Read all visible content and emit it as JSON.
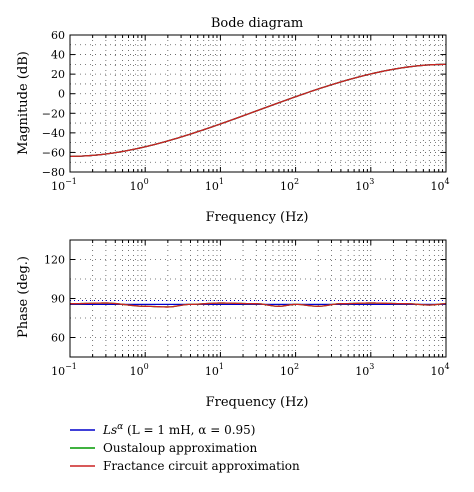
{
  "chart_data": [
    {
      "type": "line",
      "title": "Bode diagram",
      "xlabel": "Frequency (Hz)",
      "ylabel": "Magnitude (dB)",
      "xscale": "log",
      "xlim": [
        0.1,
        10000
      ],
      "ylim": [
        -80,
        60
      ],
      "xticks": [
        {
          "base": "10",
          "exp": "−1"
        },
        {
          "base": "10",
          "exp": "0"
        },
        {
          "base": "10",
          "exp": "1"
        },
        {
          "base": "10",
          "exp": "2"
        },
        {
          "base": "10",
          "exp": "3"
        },
        {
          "base": "10",
          "exp": "4"
        }
      ],
      "xtick_values": [
        0.1,
        1,
        10,
        100,
        1000,
        10000
      ],
      "yticks": [
        "60",
        "40",
        "20",
        "0",
        "−20",
        "−40",
        "−60",
        "−80"
      ],
      "ytick_values": [
        60,
        40,
        20,
        0,
        -20,
        -40,
        -60,
        -80
      ],
      "grid": true,
      "series": [
        {
          "x": [
            0.1,
            10000
          ],
          "y": [
            -64,
            30
          ],
          "color": "#0000cc"
        },
        {
          "x": [
            0.1,
            10000
          ],
          "y": [
            -64,
            30
          ],
          "color": "#009900"
        },
        {
          "x": [
            0.1,
            10000
          ],
          "y": [
            -64,
            30
          ],
          "color": "#cc2222"
        }
      ]
    },
    {
      "type": "line",
      "xlabel": "Frequency (Hz)",
      "ylabel": "Phase (deg.)",
      "xscale": "log",
      "xlim": [
        0.1,
        10000
      ],
      "ylim": [
        45,
        135
      ],
      "xticks": [
        {
          "base": "10",
          "exp": "−1"
        },
        {
          "base": "10",
          "exp": "0"
        },
        {
          "base": "10",
          "exp": "1"
        },
        {
          "base": "10",
          "exp": "2"
        },
        {
          "base": "10",
          "exp": "3"
        },
        {
          "base": "10",
          "exp": "4"
        }
      ],
      "xtick_values": [
        0.1,
        1,
        10,
        100,
        1000,
        10000
      ],
      "yticks": [
        "120",
        "90",
        "60"
      ],
      "ytick_values": [
        120,
        90,
        60
      ],
      "grid": true,
      "series": [
        {
          "x": [
            0.1,
            10000
          ],
          "y": [
            85.5,
            85.5
          ],
          "color": "#0000cc"
        },
        {
          "x": [
            0.1,
            0.3,
            1,
            2,
            4,
            10,
            30,
            60,
            100,
            200,
            400,
            1000,
            3000,
            6000,
            10000
          ],
          "y": [
            86,
            86.5,
            84,
            83.5,
            85.5,
            86.5,
            86,
            84,
            85.5,
            84,
            86,
            86.5,
            86,
            85,
            86
          ],
          "color": "#009900"
        },
        {
          "x": [
            0.1,
            0.3,
            1,
            2,
            4,
            10,
            30,
            60,
            100,
            200,
            400,
            1000,
            3000,
            6000,
            10000
          ],
          "y": [
            86,
            86.5,
            84,
            83.5,
            85.5,
            86.5,
            86,
            84,
            85.5,
            84,
            86,
            86.5,
            86,
            85,
            86
          ],
          "color": "#cc2222"
        }
      ]
    }
  ],
  "reference_line": {
    "y": 88.5,
    "color": "#0000cc"
  },
  "legend": {
    "placement": "bottom-left",
    "entries": [
      {
        "color": "#0000cc",
        "label_prefix": "Ls",
        "label_sup": "α",
        "label_rest": " (L = 1 mH, α = 0.95)"
      },
      {
        "color": "#009900",
        "label": "Oustaloup approximation"
      },
      {
        "color": "#cc2222",
        "label": "Fractance circuit approximation"
      }
    ]
  }
}
